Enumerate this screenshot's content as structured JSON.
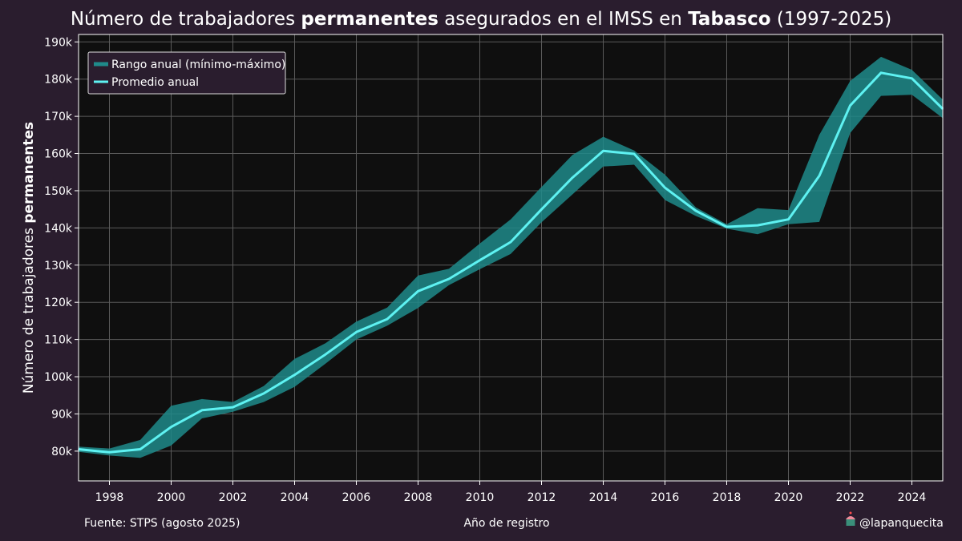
{
  "colors": {
    "background": "#2a1d2e",
    "plot_background": "#0f0f0f",
    "band": "#1f8a8a",
    "line": "#5ef2f2",
    "grid": "#5a5a5a"
  },
  "footer": {
    "source": "Fuente: STPS (agosto 2025)",
    "xlabel": "Año de registro",
    "handle": "@lapanquecita",
    "handle_icon": "cupcake-icon"
  },
  "chart_data": {
    "type": "line",
    "title_parts": [
      {
        "text": "Número de trabajadores ",
        "bold": false
      },
      {
        "text": "permanentes",
        "bold": true
      },
      {
        "text": " asegurados en el IMSS en ",
        "bold": false
      },
      {
        "text": "Tabasco",
        "bold": true
      },
      {
        "text": " (1997-2025)",
        "bold": false
      }
    ],
    "ylabel_parts": [
      {
        "text": "Número de trabajadores ",
        "bold": false
      },
      {
        "text": "permanentes",
        "bold": true
      }
    ],
    "xlim": [
      1997,
      2025
    ],
    "ylim": [
      72000,
      192000
    ],
    "xticks": [
      1998,
      2000,
      2002,
      2004,
      2006,
      2008,
      2010,
      2012,
      2014,
      2016,
      2018,
      2020,
      2022,
      2024
    ],
    "yticks": [
      80000,
      90000,
      100000,
      110000,
      120000,
      130000,
      140000,
      150000,
      160000,
      170000,
      180000,
      190000
    ],
    "ytick_labels": [
      "80k",
      "90k",
      "100k",
      "110k",
      "120k",
      "130k",
      "140k",
      "150k",
      "160k",
      "170k",
      "180k",
      "190k"
    ],
    "grid": true,
    "legend_position": "top-left",
    "legend": [
      "Rango anual (mínimo-máximo)",
      "Promedio anual"
    ],
    "x": [
      1997,
      1998,
      1999,
      2000,
      2001,
      2002,
      2003,
      2004,
      2005,
      2006,
      2007,
      2008,
      2009,
      2010,
      2011,
      2012,
      2013,
      2014,
      2015,
      2016,
      2017,
      2018,
      2019,
      2020,
      2021,
      2022,
      2023,
      2024,
      2025
    ],
    "series": [
      {
        "name": "Promedio anual",
        "values": [
          80500,
          79700,
          80500,
          86500,
          91000,
          91800,
          95500,
          100500,
          106000,
          112000,
          115500,
          123000,
          126300,
          131300,
          136200,
          145000,
          153500,
          160700,
          159900,
          150800,
          144600,
          140300,
          140700,
          142300,
          154000,
          172900,
          181700,
          180200,
          172000
        ]
      },
      {
        "name": "Rango anual (mínimo-máximo)",
        "min": [
          79800,
          78800,
          78200,
          81500,
          88800,
          90600,
          93200,
          97300,
          103500,
          110000,
          113700,
          118500,
          124600,
          128900,
          133000,
          141500,
          149000,
          156500,
          157000,
          147500,
          143200,
          139800,
          138300,
          141000,
          141600,
          165500,
          175500,
          175800,
          169500
        ],
        "max": [
          81200,
          80700,
          83000,
          92200,
          94000,
          93200,
          97500,
          104800,
          109000,
          114800,
          118600,
          127200,
          129000,
          135800,
          142300,
          151000,
          159600,
          164500,
          160800,
          154300,
          145500,
          141000,
          145300,
          144800,
          165000,
          179500,
          186000,
          182500,
          174500
        ]
      }
    ]
  }
}
